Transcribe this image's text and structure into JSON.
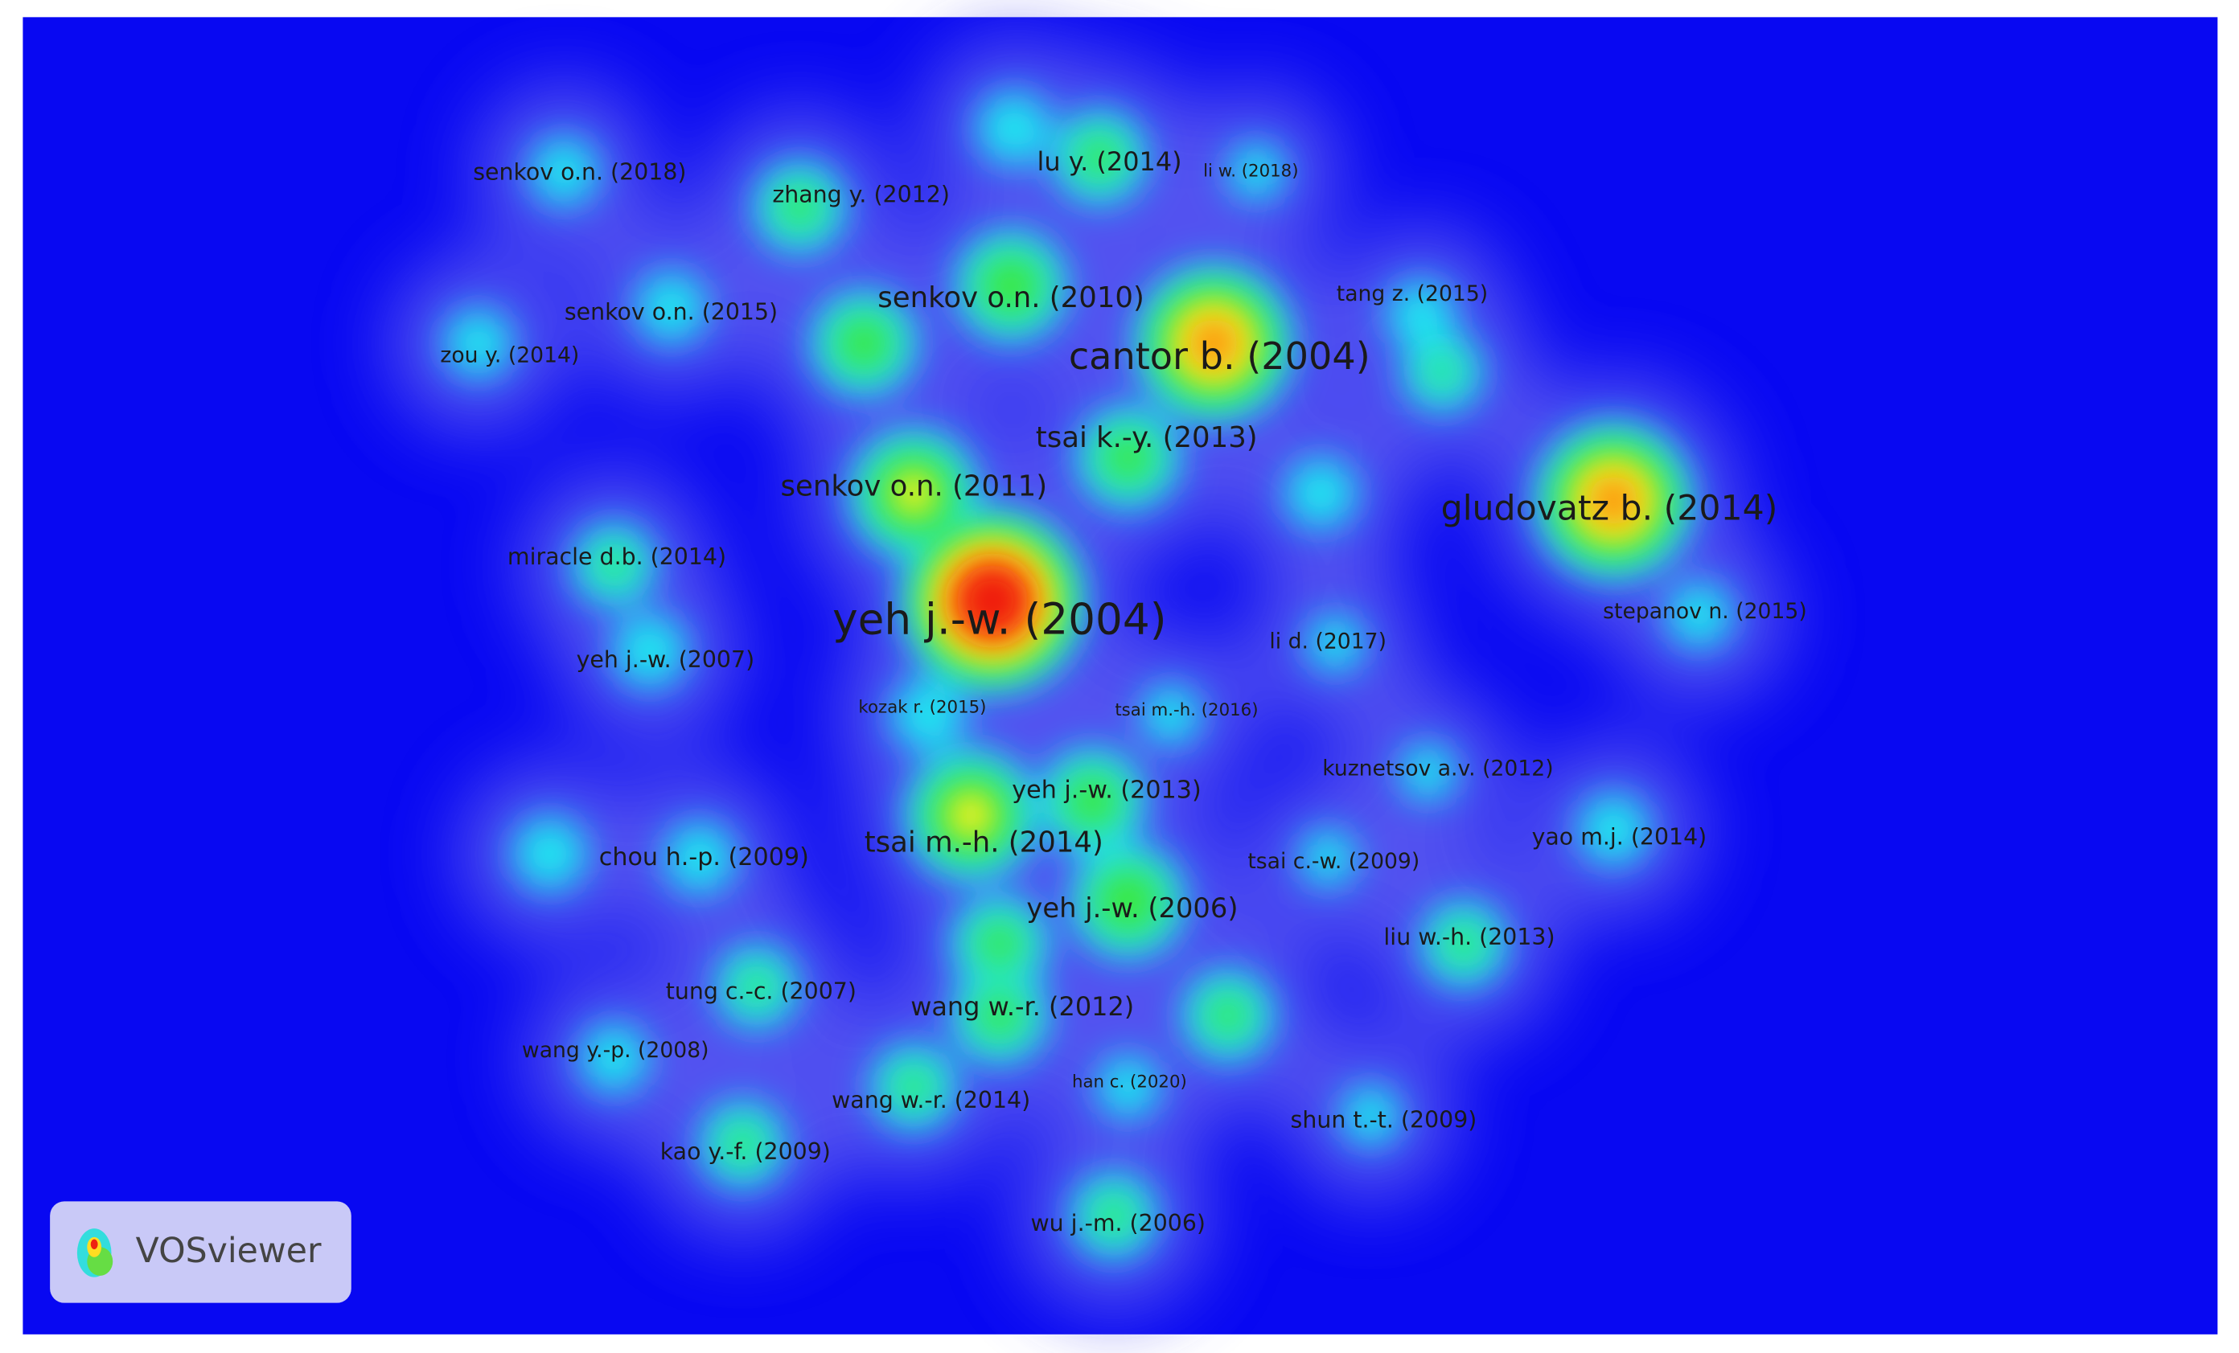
{
  "nodes": [
    {
      "label": "senkov o.n. (2018)"
    },
    {
      "label": "zhang y. (2012)"
    },
    {
      "label": "lu y. (2014)"
    },
    {
      "label": "li w. (2018)"
    },
    {
      "label": "senkov o.n. (2010)"
    },
    {
      "label": "cantor b. (2004)"
    },
    {
      "label": "tang z. (2015)"
    },
    {
      "label": "senkov o.n. (2015)"
    },
    {
      "label": "zou y. (2014)"
    },
    {
      "label": "tsai k.-y. (2013)"
    },
    {
      "label": "senkov o.n. (2011)"
    },
    {
      "label": "gludovatz b. (2014)"
    },
    {
      "label": "miracle d.b. (2014)"
    },
    {
      "label": "yeh j.-w. (2004)"
    },
    {
      "label": "stepanov n. (2015)"
    },
    {
      "label": "li d. (2017)"
    },
    {
      "label": "yeh j.-w. (2007)"
    },
    {
      "label": "kozak r. (2015)"
    },
    {
      "label": "tsai m.-h. (2016)"
    },
    {
      "label": "kuznetsov a.v. (2012)"
    },
    {
      "label": "yeh j.-w. (2013)"
    },
    {
      "label": "yao m.j. (2014)"
    },
    {
      "label": "chou h.-p. (2009)"
    },
    {
      "label": "tsai m.-h. (2014)"
    },
    {
      "label": "tsai c.-w. (2009)"
    },
    {
      "label": "yeh j.-w. (2006)"
    },
    {
      "label": "liu w.-h. (2013)"
    },
    {
      "label": "tung c.-c. (2007)"
    },
    {
      "label": "wang w.-r. (2012)"
    },
    {
      "label": "wang y.-p. (2008)"
    },
    {
      "label": "han c. (2020)"
    },
    {
      "label": "wang w.-r. (2014)"
    },
    {
      "label": "shun t.-t. (2009)"
    },
    {
      "label": "kao y.-f. (2009)"
    },
    {
      "label": "wu j.-m. (2006)"
    }
  ],
  "logo": {
    "text": "VOSviewer"
  }
}
